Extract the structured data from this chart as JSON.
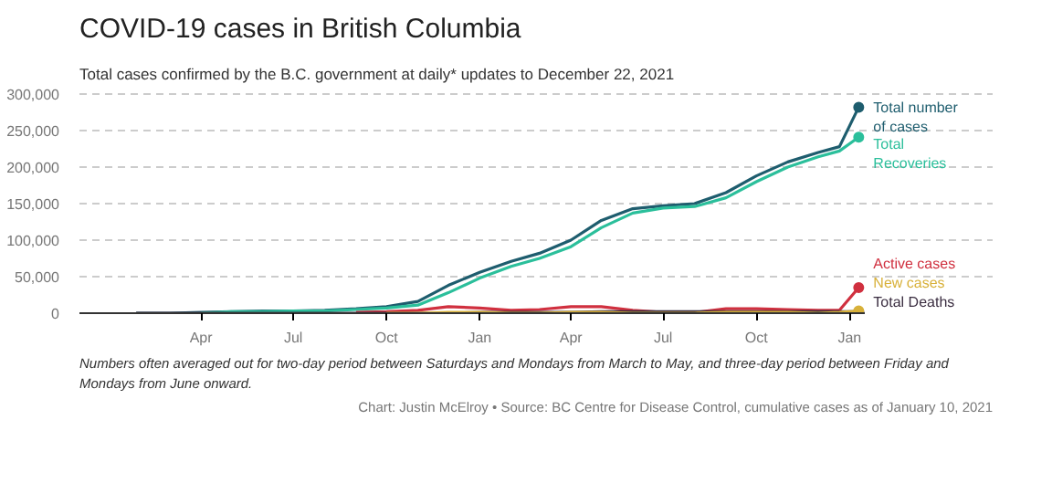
{
  "chart_data": {
    "type": "line",
    "title": "COVID-19 cases in British Columbia",
    "subtitle": "Total cases confirmed by the B.C. government at daily* updates to December 22, 2021",
    "x": [
      "2020-01-28",
      "2020-03-01",
      "2020-04-01",
      "2020-05-01",
      "2020-06-01",
      "2020-07-01",
      "2020-08-01",
      "2020-09-01",
      "2020-10-01",
      "2020-11-01",
      "2020-12-01",
      "2021-01-01",
      "2021-02-01",
      "2021-03-01",
      "2021-04-01",
      "2021-05-01",
      "2021-06-01",
      "2021-07-01",
      "2021-08-01",
      "2021-09-01",
      "2021-10-01",
      "2021-11-01",
      "2021-12-01",
      "2021-12-22",
      "2022-01-10"
    ],
    "series": [
      {
        "name": "Total number of cases",
        "color": "#1e5d6e",
        "values": [
          0,
          0,
          1000,
          2000,
          3000,
          3000,
          4000,
          6000,
          9000,
          16000,
          38000,
          56000,
          71000,
          82000,
          100000,
          127000,
          143000,
          147000,
          150000,
          165000,
          188000,
          207000,
          220000,
          228000,
          282000
        ]
      },
      {
        "name": "Total Recoveries",
        "color": "#2bbf9b",
        "values": [
          null,
          null,
          0,
          2000,
          2000,
          3000,
          3000,
          5000,
          7000,
          11000,
          28000,
          48000,
          64000,
          75000,
          91000,
          117000,
          137000,
          144000,
          146000,
          158000,
          180000,
          200000,
          214000,
          222000,
          241000
        ]
      },
      {
        "name": "Active cases",
        "color": "#d0303f",
        "values": [
          null,
          null,
          null,
          null,
          null,
          null,
          null,
          1000,
          2000,
          4000,
          9000,
          7000,
          4000,
          5000,
          9000,
          9000,
          4000,
          1000,
          1000,
          6000,
          6000,
          5000,
          4000,
          4000,
          35000
        ]
      },
      {
        "name": "Total Deaths",
        "color": "#3a2d40",
        "values": [
          0,
          0,
          0,
          0,
          0,
          0,
          0,
          0,
          0,
          0,
          0,
          1000,
          1000,
          1000,
          1000,
          2000,
          2000,
          2000,
          2000,
          2000,
          2000,
          2000,
          2000,
          2000,
          2000
        ]
      },
      {
        "name": "New cases",
        "color": "#d8b13a",
        "values": [
          null,
          null,
          null,
          null,
          null,
          null,
          null,
          null,
          0,
          0,
          1000,
          1000,
          0,
          0,
          1000,
          1000,
          0,
          0,
          0,
          1000,
          1000,
          1000,
          0,
          1000,
          3000
        ]
      }
    ],
    "xlim": [
      "2019-12-03",
      "2022-01-16"
    ],
    "xticks": [
      {
        "value": "2020-04-01",
        "label": "Apr"
      },
      {
        "value": "2020-07-01",
        "label": "Jul"
      },
      {
        "value": "2020-10-01",
        "label": "Oct"
      },
      {
        "value": "2021-01-01",
        "label": "Jan"
      },
      {
        "value": "2021-04-01",
        "label": "Apr"
      },
      {
        "value": "2021-07-01",
        "label": "Jul"
      },
      {
        "value": "2021-10-01",
        "label": "Oct"
      },
      {
        "value": "2022-01-01",
        "label": "Jan"
      }
    ],
    "ylim": [
      0,
      305000
    ],
    "yticks": [
      0,
      {
        "value": 50000,
        "label": "50,000"
      },
      {
        "value": 100000,
        "label": "100,000"
      },
      {
        "value": 150000,
        "label": "150,000"
      },
      {
        "value": 200000,
        "label": "200,000"
      },
      {
        "value": 250000,
        "label": "250,000"
      },
      {
        "value": 300000,
        "label": "300,000"
      }
    ],
    "grid": "y",
    "legend": false,
    "annotations": [
      "Numbers often averaged out for two-day period between Saturdays and Mondays from March to May, and three-day period between Friday and Mondays from June onward.",
      "Chart: Justin McElroy • Source: BC Centre for Disease Control, cumulative cases as of January 10, 2021"
    ]
  }
}
